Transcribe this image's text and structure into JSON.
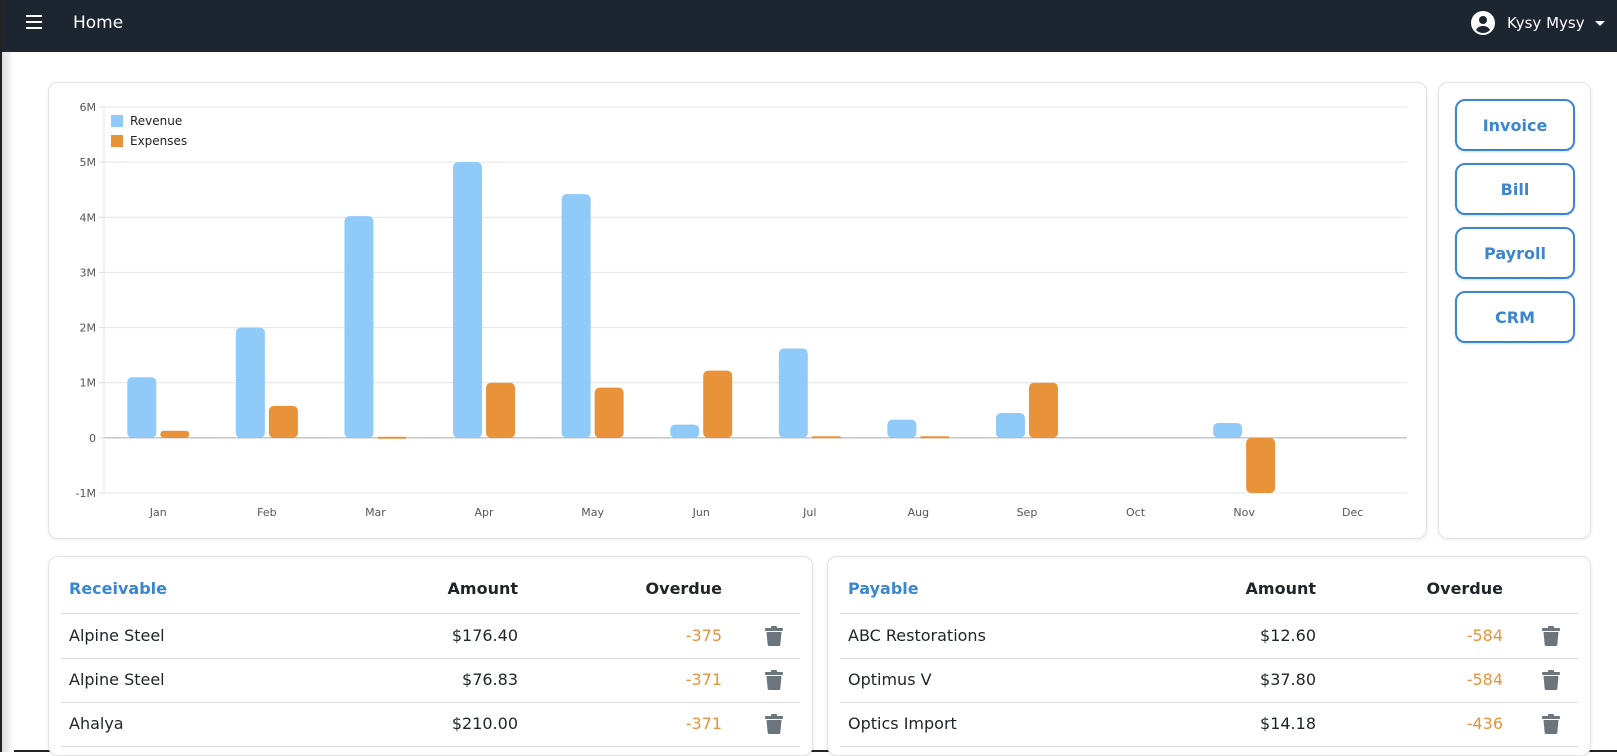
{
  "nav": {
    "title": "Home",
    "menu_icon": "hamburger-icon",
    "user_name": "Kysy Mysy",
    "user_icon": "user-circle-icon"
  },
  "quick_actions": [
    "Invoice",
    "Bill",
    "Payroll",
    "CRM"
  ],
  "colors": {
    "revenue": "#90caf9",
    "expenses": "#e8923a",
    "accent": "#3a86cf",
    "navbar": "#1c2530"
  },
  "chart_data": {
    "type": "bar",
    "categories": [
      "Jan",
      "Feb",
      "Mar",
      "Apr",
      "May",
      "Jun",
      "Jul",
      "Aug",
      "Sep",
      "Oct",
      "Nov",
      "Dec"
    ],
    "series": [
      {
        "name": "Revenue",
        "values": [
          1.1,
          2.0,
          4.02,
          5.0,
          4.42,
          0.24,
          1.62,
          0.33,
          0.45,
          0,
          0.27,
          0
        ]
      },
      {
        "name": "Expenses",
        "values": [
          0.13,
          0.58,
          0.02,
          1.0,
          0.91,
          1.22,
          0.03,
          0.03,
          1.0,
          0,
          -1.0,
          0
        ]
      }
    ],
    "unit": "M",
    "yticks": [
      "6M",
      "5M",
      "4M",
      "3M",
      "2M",
      "1M",
      "0",
      "-1M"
    ],
    "ylim": [
      -1,
      6
    ],
    "grid": true,
    "legend": "top-left"
  },
  "receivable": {
    "title": "Receivable",
    "col_amount": "Amount",
    "col_overdue": "Overdue",
    "rows": [
      {
        "name": "Alpine Steel",
        "amount": "$176.40",
        "overdue": "-375"
      },
      {
        "name": "Alpine Steel",
        "amount": "$76.83",
        "overdue": "-371"
      },
      {
        "name": "Ahalya",
        "amount": "$210.00",
        "overdue": "-371"
      }
    ]
  },
  "payable": {
    "title": "Payable",
    "col_amount": "Amount",
    "col_overdue": "Overdue",
    "rows": [
      {
        "name": "ABC Restorations",
        "amount": "$12.60",
        "overdue": "-584"
      },
      {
        "name": "Optimus V",
        "amount": "$37.80",
        "overdue": "-584"
      },
      {
        "name": "Optics Import",
        "amount": "$14.18",
        "overdue": "-436"
      }
    ]
  }
}
